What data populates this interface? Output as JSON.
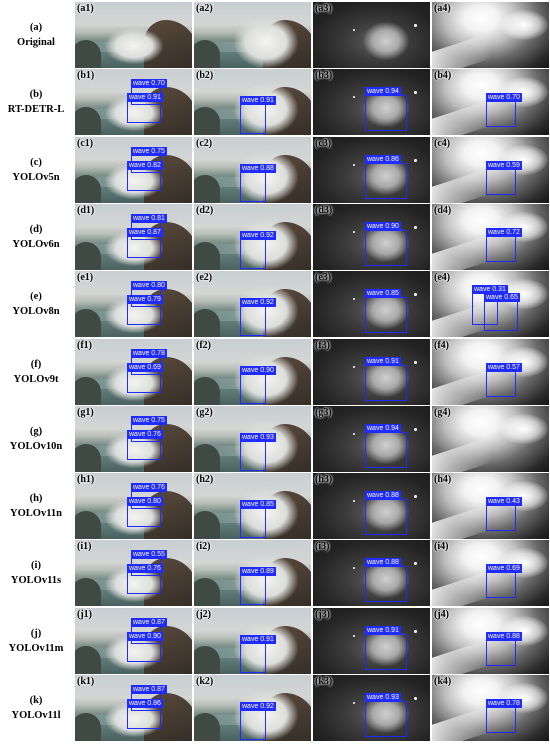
{
  "rows": [
    {
      "letter": "(a)",
      "model": "Original",
      "panel_labels": [
        "(a1)",
        "(a2)",
        "(a3)",
        "(a4)"
      ],
      "detections": [
        [],
        [],
        [],
        []
      ]
    },
    {
      "letter": "(b)",
      "model": "RT-DETR-L",
      "panel_labels": [
        "(b1)",
        "(b2)",
        "(b3)",
        "(b4)"
      ],
      "detections": [
        [
          {
            "label": "wave 0.70"
          },
          {
            "label": "wave 0.91"
          }
        ],
        [
          {
            "label": "wave 0.91"
          }
        ],
        [
          {
            "label": "wave 0.94"
          }
        ],
        [
          {
            "label": "wave 0.70"
          }
        ]
      ]
    },
    {
      "letter": "(c)",
      "model": "YOLOv5n",
      "panel_labels": [
        "(c1)",
        "(c2)",
        "(c3)",
        "(c4)"
      ],
      "detections": [
        [
          {
            "label": "wave 0.75"
          },
          {
            "label": "wave 0.82"
          }
        ],
        [
          {
            "label": "wave 0.88"
          }
        ],
        [
          {
            "label": "wave 0.86"
          }
        ],
        [
          {
            "label": "wave 0.59"
          }
        ]
      ]
    },
    {
      "letter": "(d)",
      "model": "YOLOv6n",
      "panel_labels": [
        "(d1)",
        "(d2)",
        "(d3)",
        "(d4)"
      ],
      "detections": [
        [
          {
            "label": "wave 0.81"
          },
          {
            "label": "wave 0.87"
          }
        ],
        [
          {
            "label": "wave 0.92"
          }
        ],
        [
          {
            "label": "wave 0.90"
          }
        ],
        [
          {
            "label": "wave 0.72"
          }
        ]
      ]
    },
    {
      "letter": "(e)",
      "model": "YOLOv8n",
      "panel_labels": [
        "(e1)",
        "(e2)",
        "(e3)",
        "(e4)"
      ],
      "detections": [
        [
          {
            "label": "wave 0.80"
          },
          {
            "label": "wave 0.79"
          }
        ],
        [
          {
            "label": "wave 0.92"
          }
        ],
        [
          {
            "label": "wave 0.85"
          }
        ],
        [
          {
            "label": "wave 0.31"
          },
          {
            "label": "wave 0.65"
          }
        ]
      ]
    },
    {
      "letter": "(f)",
      "model": "YOLOv9t",
      "panel_labels": [
        "(f1)",
        "(f2)",
        "(f3)",
        "(f4)"
      ],
      "detections": [
        [
          {
            "label": "wave 0.78"
          },
          {
            "label": "wave 0.69"
          }
        ],
        [
          {
            "label": "wave 0.90"
          }
        ],
        [
          {
            "label": "wave 0.91"
          }
        ],
        [
          {
            "label": "wave 0.57"
          }
        ]
      ]
    },
    {
      "letter": "(g)",
      "model": "YOLOv10n",
      "panel_labels": [
        "(g1)",
        "(g2)",
        "(g3)",
        "(g4)"
      ],
      "detections": [
        [
          {
            "label": "wave 0.75"
          },
          {
            "label": "wave 0.76"
          }
        ],
        [
          {
            "label": "wave 0.93"
          }
        ],
        [
          {
            "label": "wave 0.94"
          }
        ],
        []
      ]
    },
    {
      "letter": "(h)",
      "model": "YOLOv11n",
      "panel_labels": [
        "(h1)",
        "(h2)",
        "(h3)",
        "(h4)"
      ],
      "detections": [
        [
          {
            "label": "wave 0.76"
          },
          {
            "label": "wave 0.80"
          }
        ],
        [
          {
            "label": "wave 0.85"
          }
        ],
        [
          {
            "label": "wave 0.88"
          }
        ],
        [
          {
            "label": "wave 0.43"
          }
        ]
      ]
    },
    {
      "letter": "(i)",
      "model": "YOLOv11s",
      "panel_labels": [
        "(i1)",
        "(i2)",
        "(i3)",
        "(i4)"
      ],
      "detections": [
        [
          {
            "label": "wave 0.55"
          },
          {
            "label": "wave 0.76"
          }
        ],
        [
          {
            "label": "wave 0.89"
          }
        ],
        [
          {
            "label": "wave 0.88"
          }
        ],
        [
          {
            "label": "wave 0.69"
          }
        ]
      ]
    },
    {
      "letter": "(j)",
      "model": "YOLOv11m",
      "panel_labels": [
        "(j1)",
        "(j2)",
        "(j3)",
        "(j4)"
      ],
      "detections": [
        [
          {
            "label": "wave 0.87"
          },
          {
            "label": "wave 0.90"
          }
        ],
        [
          {
            "label": "wave 0.91"
          }
        ],
        [
          {
            "label": "wave 0.91"
          }
        ],
        [
          {
            "label": "wave 0.88"
          }
        ]
      ]
    },
    {
      "letter": "(k)",
      "model": "YOLOv11l",
      "panel_labels": [
        "(k1)",
        "(k2)",
        "(k3)",
        "(k4)"
      ],
      "detections": [
        [
          {
            "label": "wave 0.87"
          },
          {
            "label": "wave 0.86"
          }
        ],
        [
          {
            "label": "wave 0.92"
          }
        ],
        [
          {
            "label": "wave 0.93"
          }
        ],
        [
          {
            "label": "wave 0.78"
          }
        ]
      ]
    }
  ],
  "colors": {
    "detection_box": "#1f2bff",
    "label_text": "#ffffff"
  }
}
